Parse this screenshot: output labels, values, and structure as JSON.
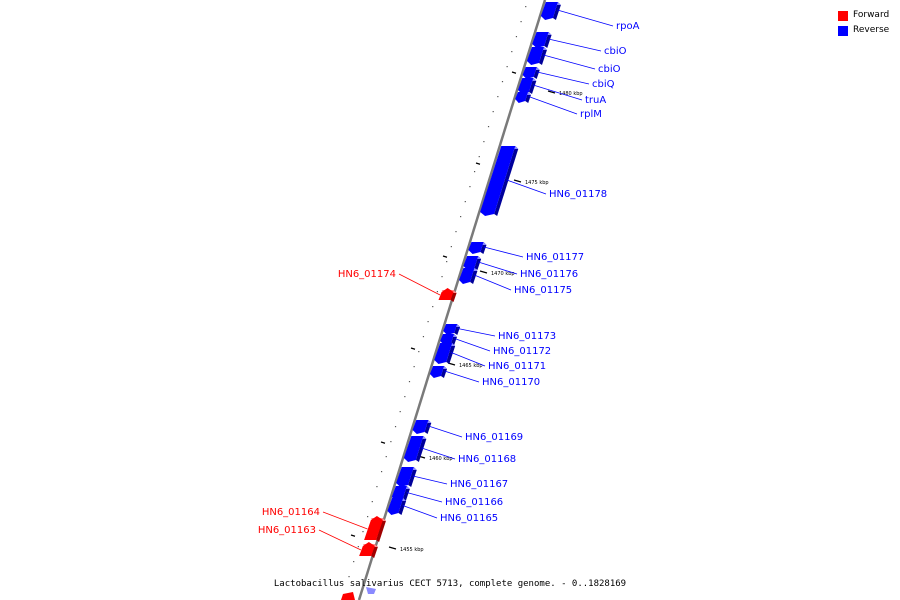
{
  "legend": {
    "forward_label": "Forward",
    "reverse_label": "Reverse",
    "forward_color": "#ff0000",
    "reverse_color": "#0000ff"
  },
  "caption": "Lactobacillus salivarius CECT 5713, complete genome. - 0..1828169",
  "scale_ticks": [
    {
      "label": "1480 kbp",
      "kbp": 1480
    },
    {
      "label": "1475 kbp",
      "kbp": 1475
    },
    {
      "label": "1470 kbp",
      "kbp": 1470
    },
    {
      "label": "1465 kbp",
      "kbp": 1465
    },
    {
      "label": "1460 kbp",
      "kbp": 1460
    },
    {
      "label": "1455 kbp",
      "kbp": 1455
    }
  ],
  "genes": [
    {
      "name": "rpoA",
      "strand": "reverse"
    },
    {
      "name": "cbiO",
      "strand": "reverse"
    },
    {
      "name": "cbiO",
      "strand": "reverse"
    },
    {
      "name": "cbiQ",
      "strand": "reverse"
    },
    {
      "name": "truA",
      "strand": "reverse"
    },
    {
      "name": "rplM",
      "strand": "reverse"
    },
    {
      "name": "HN6_01178",
      "strand": "reverse"
    },
    {
      "name": "HN6_01177",
      "strand": "reverse"
    },
    {
      "name": "HN6_01176",
      "strand": "reverse"
    },
    {
      "name": "HN6_01175",
      "strand": "reverse"
    },
    {
      "name": "HN6_01174",
      "strand": "forward"
    },
    {
      "name": "HN6_01173",
      "strand": "reverse"
    },
    {
      "name": "HN6_01172",
      "strand": "reverse"
    },
    {
      "name": "HN6_01171",
      "strand": "reverse"
    },
    {
      "name": "HN6_01170",
      "strand": "reverse"
    },
    {
      "name": "HN6_01169",
      "strand": "reverse"
    },
    {
      "name": "HN6_01168",
      "strand": "reverse"
    },
    {
      "name": "HN6_01167",
      "strand": "reverse"
    },
    {
      "name": "HN6_01166",
      "strand": "reverse"
    },
    {
      "name": "HN6_01165",
      "strand": "reverse"
    },
    {
      "name": "HN6_01164",
      "strand": "forward"
    },
    {
      "name": "HN6_01163",
      "strand": "forward"
    }
  ]
}
